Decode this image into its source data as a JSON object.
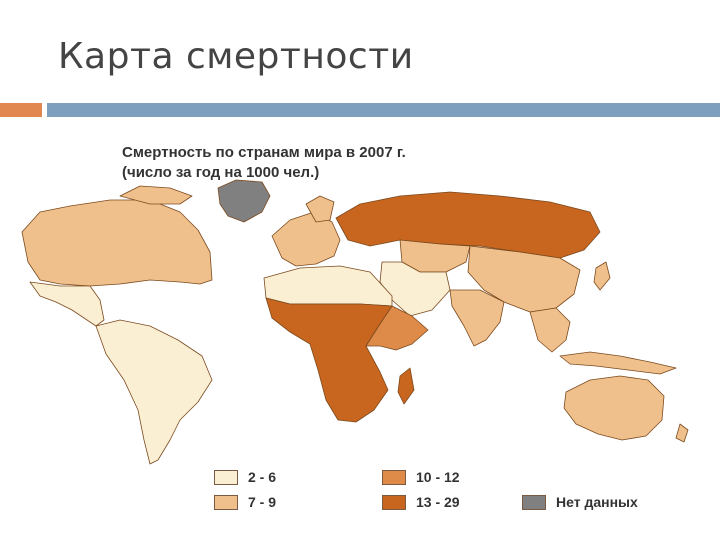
{
  "slide": {
    "title": "Карта смертности"
  },
  "theme": {
    "accent_orange": "#e0884f",
    "accent_blue": "#7f9fbf",
    "land_border": "#7b4a1e",
    "ocean": "#ffffff"
  },
  "map": {
    "title_line1": "Смертность по странам мира в 2007 г.",
    "title_line2": "(число за год на 1000 чел.)",
    "legend": [
      {
        "range": "2 - 6",
        "color": "#fbefd3"
      },
      {
        "range": "7 - 9",
        "color": "#f0c08c"
      },
      {
        "range": "10 - 12",
        "color": "#de8a48"
      },
      {
        "range": "13 - 29",
        "color": "#c8651e"
      },
      {
        "range": "Нет данных",
        "color": "#808080"
      }
    ],
    "regions": [
      {
        "name": "North America",
        "category": "7 - 9"
      },
      {
        "name": "Greenland",
        "category": "Нет данных"
      },
      {
        "name": "Mexico and Central America",
        "category": "2 - 6"
      },
      {
        "name": "South America",
        "category": "2 - 6"
      },
      {
        "name": "Western Europe",
        "category": "7 - 9"
      },
      {
        "name": "Eastern Europe and Russia",
        "category": "13 - 29"
      },
      {
        "name": "Central Asia",
        "category": "7 - 9"
      },
      {
        "name": "China",
        "category": "7 - 9"
      },
      {
        "name": "Middle East",
        "category": "2 - 6"
      },
      {
        "name": "South Asia",
        "category": "7 - 9"
      },
      {
        "name": "Southeast Asia",
        "category": "7 - 9"
      },
      {
        "name": "North Africa",
        "category": "2 - 6"
      },
      {
        "name": "Sub-Saharan Africa",
        "category": "13 - 29"
      },
      {
        "name": "East Africa",
        "category": "10 - 12"
      },
      {
        "name": "Australia",
        "category": "7 - 9"
      }
    ]
  }
}
